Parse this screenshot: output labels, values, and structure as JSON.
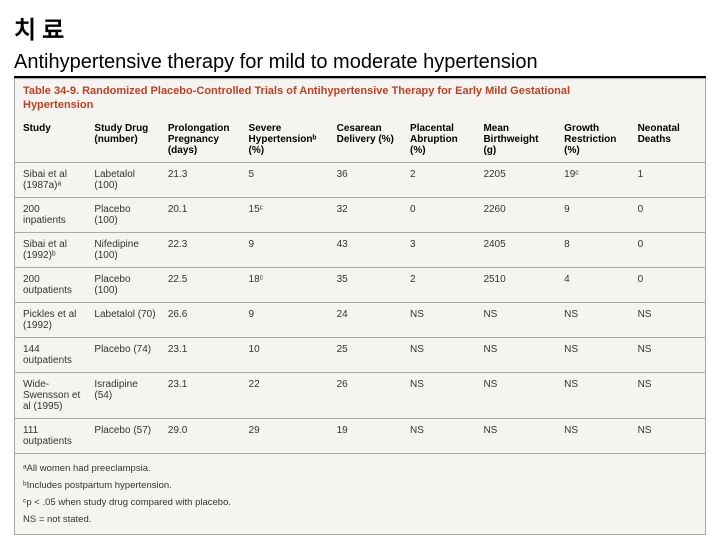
{
  "heading": "치료",
  "subtitle": "Antihypertensive therapy for mild to moderate hypertension",
  "table_title_line1": "Table 34-9. Randomized Placebo-Controlled Trials of Antihypertensive Therapy for Early Mild Gestational",
  "table_title_line2": "Hypertension",
  "columns": [
    "Study",
    "Study Drug (number)",
    "Prolongation Pregnancy (days)",
    "Severe Hypertensionᵇ (%)",
    "Cesarean Delivery (%)",
    "Placental Abruption (%)",
    "Mean Birthweight (g)",
    "Growth Restriction (%)",
    "Neonatal Deaths"
  ],
  "rows": [
    [
      "Sibai et al (1987a)ᵃ",
      "Labetalol (100)",
      "21.3",
      "5",
      "36",
      "2",
      "2205",
      "19ᶜ",
      "1"
    ],
    [
      "200 inpatients",
      "Placebo (100)",
      "20.1",
      "15ᶜ",
      "32",
      "0",
      "2260",
      "9",
      "0"
    ],
    [
      "Sibai et al (1992)ᵇ",
      "Nifedipine (100)",
      "22.3",
      "9",
      "43",
      "3",
      "2405",
      "8",
      "0"
    ],
    [
      "200 outpatients",
      "Placebo (100)",
      "22.5",
      "18ᶜ",
      "35",
      "2",
      "2510",
      "4",
      "0"
    ],
    [
      "Pickles et al (1992)",
      "Labetalol (70)",
      "26.6",
      "9",
      "24",
      "NS",
      "NS",
      "NS",
      "NS"
    ],
    [
      "144 outpatients",
      "Placebo (74)",
      "23.1",
      "10",
      "25",
      "NS",
      "NS",
      "NS",
      "NS"
    ],
    [
      "Wide-Swensson et al (1995)",
      "Isradipine (54)",
      "23.1",
      "22",
      "26",
      "NS",
      "NS",
      "NS",
      "NS"
    ],
    [
      "111 outpatients",
      "Placebo (57)",
      "29.0",
      "29",
      "19",
      "NS",
      "NS",
      "NS",
      "NS"
    ]
  ],
  "footnotes": [
    "ᵃAll women had preeclampsia.",
    "ᵇIncludes postpartum hypertension.",
    "ᶜp < .05 when study drug compared with placebo.",
    "NS = not stated."
  ],
  "colors": {
    "title_red": "#c04020",
    "table_bg": "#f6f4f0",
    "border": "#aaaaaa"
  }
}
